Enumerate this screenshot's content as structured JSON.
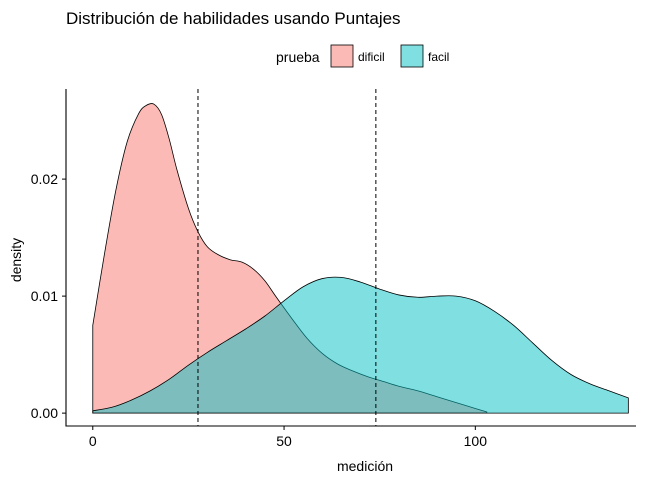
{
  "chart_data": {
    "type": "area",
    "title": "Distribución de habilidades usando Puntajes",
    "xlabel": "medición",
    "ylabel": "density",
    "xlim": [
      -7,
      142
    ],
    "ylim": [
      -0.0011,
      0.0277
    ],
    "x_ticks": [
      0,
      50,
      100
    ],
    "x_tick_labels": [
      "0",
      "50",
      "100"
    ],
    "y_ticks": [
      0,
      0.01,
      0.02
    ],
    "y_tick_labels": [
      "0.00",
      "0.01",
      "0.02"
    ],
    "grid": false,
    "legend": {
      "title": "prueba",
      "position": "top"
    },
    "vlines": [
      27.5,
      74
    ],
    "vline_style": "dashed",
    "series": [
      {
        "name": "dificil",
        "color": "#f8766d",
        "points": [
          [
            0,
            0.0075
          ],
          [
            3,
            0.0135
          ],
          [
            6,
            0.019
          ],
          [
            9,
            0.0232
          ],
          [
            12,
            0.0256
          ],
          [
            14,
            0.0263
          ],
          [
            16,
            0.0264
          ],
          [
            18,
            0.0255
          ],
          [
            20,
            0.0234
          ],
          [
            22,
            0.0208
          ],
          [
            25,
            0.0175
          ],
          [
            27.5,
            0.0155
          ],
          [
            30,
            0.0142
          ],
          [
            33,
            0.0135
          ],
          [
            36,
            0.0131
          ],
          [
            39,
            0.0129
          ],
          [
            42,
            0.0123
          ],
          [
            45,
            0.0113
          ],
          [
            48,
            0.0099
          ],
          [
            52,
            0.0081
          ],
          [
            56,
            0.0064
          ],
          [
            60,
            0.0051
          ],
          [
            64,
            0.0042
          ],
          [
            68,
            0.0036
          ],
          [
            72,
            0.0031
          ],
          [
            76,
            0.0027
          ],
          [
            80,
            0.0023
          ],
          [
            85,
            0.0019
          ],
          [
            90,
            0.0014
          ],
          [
            95,
            0.0009
          ],
          [
            100,
            0.0004
          ],
          [
            103,
            0.0001
          ]
        ]
      },
      {
        "name": "facil",
        "color": "#00bfc4",
        "points": [
          [
            0,
            0.0002
          ],
          [
            5,
            0.0005
          ],
          [
            10,
            0.0011
          ],
          [
            15,
            0.0019
          ],
          [
            20,
            0.0029
          ],
          [
            25,
            0.0041
          ],
          [
            30,
            0.0052
          ],
          [
            35,
            0.0062
          ],
          [
            40,
            0.0072
          ],
          [
            45,
            0.0083
          ],
          [
            50,
            0.0096
          ],
          [
            55,
            0.0108
          ],
          [
            60,
            0.0115
          ],
          [
            65,
            0.0116
          ],
          [
            70,
            0.0112
          ],
          [
            75,
            0.0106
          ],
          [
            80,
            0.0101
          ],
          [
            85,
            0.0099
          ],
          [
            90,
            0.01
          ],
          [
            95,
            0.01
          ],
          [
            100,
            0.0096
          ],
          [
            105,
            0.0087
          ],
          [
            110,
            0.0075
          ],
          [
            115,
            0.006
          ],
          [
            120,
            0.0045
          ],
          [
            125,
            0.0033
          ],
          [
            130,
            0.0025
          ],
          [
            135,
            0.0019
          ],
          [
            140,
            0.0013
          ]
        ]
      }
    ]
  }
}
